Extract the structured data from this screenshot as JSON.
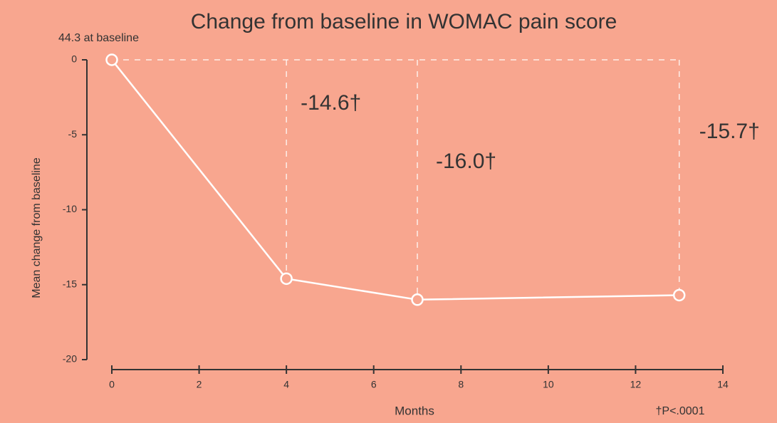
{
  "chart_data": {
    "type": "line",
    "title": "Change from baseline in WOMAC pain score",
    "annotation": "44.3 at baseline",
    "footnote": "†P<.0001",
    "xlabel": "Months",
    "ylabel": "Mean change from baseline",
    "x": [
      0,
      4,
      7,
      13
    ],
    "series": [
      {
        "name": "WOMAC pain",
        "color": "#ffffff",
        "values": [
          0,
          -14.6,
          -16.0,
          -15.7
        ],
        "value_labels": [
          null,
          "-14.6†",
          "-16.0†",
          "-15.7†"
        ]
      }
    ],
    "xlim": [
      0,
      14
    ],
    "xticks": [
      0,
      2,
      4,
      6,
      8,
      10,
      12,
      14
    ],
    "ylim": [
      -20,
      0
    ],
    "yticks": [
      0,
      -5,
      -10,
      -15,
      -20
    ]
  }
}
